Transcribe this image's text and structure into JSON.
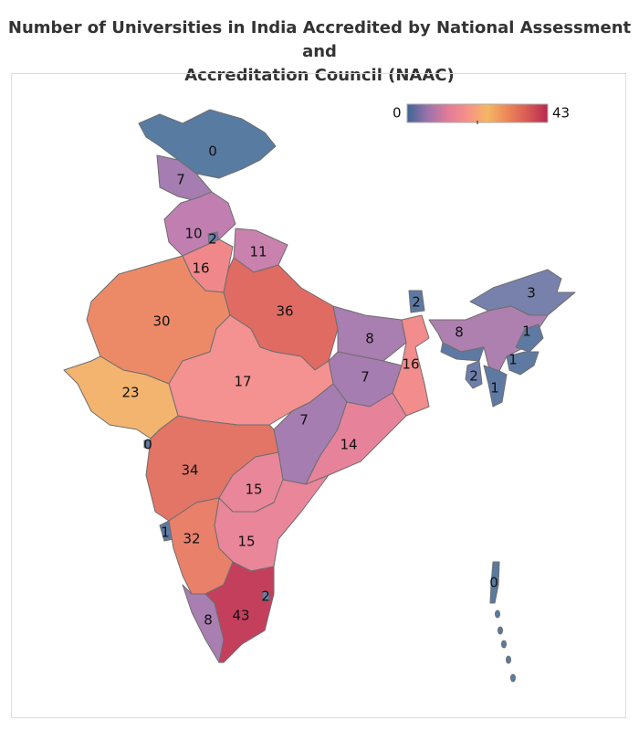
{
  "title_line1": "Number of Universities in India Accredited by National Assessment and",
  "title_line2": "Accreditation Council (NAAC)",
  "legend": {
    "min": "0",
    "max": "43",
    "colors": [
      "#3e6595",
      "#9a72ab",
      "#e07b98",
      "#f79089",
      "#f4b764",
      "#ec8658",
      "#d75a55",
      "#b8294f"
    ]
  },
  "regions": [
    {
      "id": "jammu-kashmir",
      "value": "0",
      "color": "#587ba1"
    },
    {
      "id": "himachal-pradesh",
      "value": "7",
      "color": "#a57db0"
    },
    {
      "id": "punjab",
      "value": "10",
      "color": "#c07fb0"
    },
    {
      "id": "delhi",
      "value": "2",
      "color": "#6d7faa"
    },
    {
      "id": "haryana",
      "value": "16",
      "color": "#f0888b"
    },
    {
      "id": "uttarakhand",
      "value": "11",
      "color": "#c981ad"
    },
    {
      "id": "rajasthan",
      "value": "30",
      "color": "#ec8a68"
    },
    {
      "id": "uttar-pradesh",
      "value": "36",
      "color": "#df6b62"
    },
    {
      "id": "bihar",
      "value": "8",
      "color": "#a97eb0"
    },
    {
      "id": "sikkim",
      "value": "2",
      "color": "#5d79a3"
    },
    {
      "id": "west-bengal",
      "value": "16",
      "color": "#f38c8c"
    },
    {
      "id": "jharkhand",
      "value": "7",
      "color": "#a57db0"
    },
    {
      "id": "madhya-pradesh",
      "value": "17",
      "color": "#f49191"
    },
    {
      "id": "gujarat",
      "value": "23",
      "color": "#f3b46f"
    },
    {
      "id": "chhattisgarh",
      "value": "7",
      "color": "#a57db0"
    },
    {
      "id": "odisha",
      "value": "14",
      "color": "#e6839b"
    },
    {
      "id": "maharashtra",
      "value": "34",
      "color": "#e27566"
    },
    {
      "id": "daman-diu",
      "value": "0",
      "color": "#587ba1"
    },
    {
      "id": "telangana",
      "value": "15",
      "color": "#ea869a"
    },
    {
      "id": "goa",
      "value": "1",
      "color": "#5e7aa3"
    },
    {
      "id": "andhra-pradesh",
      "value": "15",
      "color": "#ea869a"
    },
    {
      "id": "karnataka",
      "value": "32",
      "color": "#e8806a"
    },
    {
      "id": "kerala",
      "value": "8",
      "color": "#a97eb0"
    },
    {
      "id": "tamil-nadu",
      "value": "43",
      "color": "#c43f5c"
    },
    {
      "id": "puducherry",
      "value": "2",
      "color": "#6d7faa"
    },
    {
      "id": "arunachal-pradesh",
      "value": "3",
      "color": "#7781ab"
    },
    {
      "id": "assam",
      "value": "8",
      "color": "#ad80b0"
    },
    {
      "id": "meghalaya",
      "value": "",
      "color": "#5d79a3"
    },
    {
      "id": "nagaland",
      "value": "1",
      "color": "#5e7aa3"
    },
    {
      "id": "manipur",
      "value": "1",
      "color": "#5e7aa3"
    },
    {
      "id": "tripura",
      "value": "2",
      "color": "#6d7faa"
    },
    {
      "id": "mizoram",
      "value": "1",
      "color": "#5e7aa3"
    },
    {
      "id": "andaman-nicobar",
      "value": "0",
      "color": "#587ba1"
    }
  ]
}
